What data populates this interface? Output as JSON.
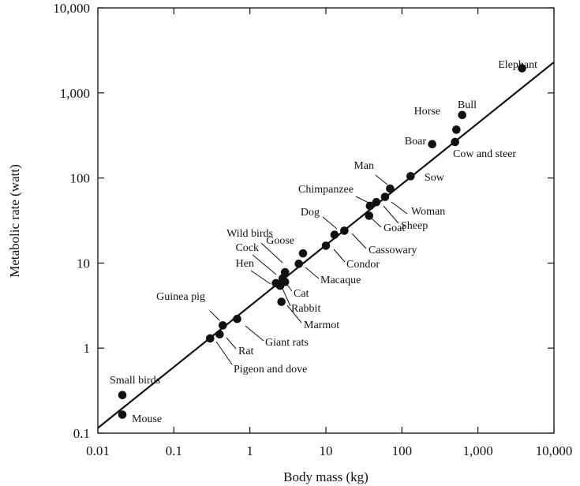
{
  "chart_data": {
    "type": "scatter",
    "title": "",
    "xlabel": "Body mass (kg)",
    "ylabel": "Metabolic rate (watt)",
    "xscale": "log",
    "yscale": "log",
    "xlim": [
      0.01,
      10000
    ],
    "ylim": [
      0.1,
      10000
    ],
    "grid": false,
    "legend": "none",
    "x_ticks": [
      {
        "value": 0.01,
        "label": "0.01"
      },
      {
        "value": 0.1,
        "label": "0.1"
      },
      {
        "value": 1,
        "label": "1"
      },
      {
        "value": 10,
        "label": "10"
      },
      {
        "value": 100,
        "label": "100"
      },
      {
        "value": 1000,
        "label": "1,000"
      },
      {
        "value": 10000,
        "label": "10,000"
      }
    ],
    "y_ticks": [
      {
        "value": 0.1,
        "label": "0.1"
      },
      {
        "value": 1,
        "label": "1"
      },
      {
        "value": 10,
        "label": "10"
      },
      {
        "value": 100,
        "label": "100"
      },
      {
        "value": 1000,
        "label": "1,000"
      },
      {
        "value": 10000,
        "label": "10,000"
      }
    ],
    "fit_line": {
      "x": [
        0.01,
        10000
      ],
      "y": [
        0.115,
        2300
      ]
    },
    "points": [
      {
        "label": "Elephant",
        "x": 3800,
        "y": 1950
      },
      {
        "label": "Bull",
        "x": 620,
        "y": 550
      },
      {
        "label": "Horse",
        "x": 520,
        "y": 370
      },
      {
        "label": "Boar",
        "x": 250,
        "y": 250
      },
      {
        "label": "Cow and steer",
        "x": 500,
        "y": 265
      },
      {
        "label": "Sow",
        "x": 130,
        "y": 105
      },
      {
        "label": "Man",
        "x": 70,
        "y": 75
      },
      {
        "label": "Chimpanzee",
        "x": 38,
        "y": 47
      },
      {
        "label": "Woman",
        "x": 60,
        "y": 60
      },
      {
        "label": "Sheep",
        "x": 46,
        "y": 52
      },
      {
        "label": "Goat",
        "x": 37,
        "y": 36
      },
      {
        "label": "Dog",
        "x": 17.5,
        "y": 24
      },
      {
        "label": "Cassowary",
        "x": 13,
        "y": 21.5
      },
      {
        "label": "Condor",
        "x": 10,
        "y": 16
      },
      {
        "label": "Goose",
        "x": 5,
        "y": 13
      },
      {
        "label": "Macaque",
        "x": 4.4,
        "y": 9.8
      },
      {
        "label": "Wild birds",
        "x": 2.9,
        "y": 7.8
      },
      {
        "label": "Cock",
        "x": 2.7,
        "y": 6.6
      },
      {
        "label": "Hen",
        "x": 2.2,
        "y": 5.8
      },
      {
        "label": "Cat",
        "x": 2.9,
        "y": 6.0
      },
      {
        "label": "Rabbit",
        "x": 2.5,
        "y": 5.4
      },
      {
        "label": "Marmot",
        "x": 2.6,
        "y": 3.5
      },
      {
        "label": "Giant rats",
        "x": 0.68,
        "y": 2.2
      },
      {
        "label": "Guinea pig",
        "x": 0.44,
        "y": 1.85
      },
      {
        "label": "Rat",
        "x": 0.4,
        "y": 1.45
      },
      {
        "label": "Pigeon and dove",
        "x": 0.3,
        "y": 1.3
      },
      {
        "label": "Small birds",
        "x": 0.021,
        "y": 0.28
      },
      {
        "label": "Mouse",
        "x": 0.021,
        "y": 0.165
      }
    ]
  }
}
